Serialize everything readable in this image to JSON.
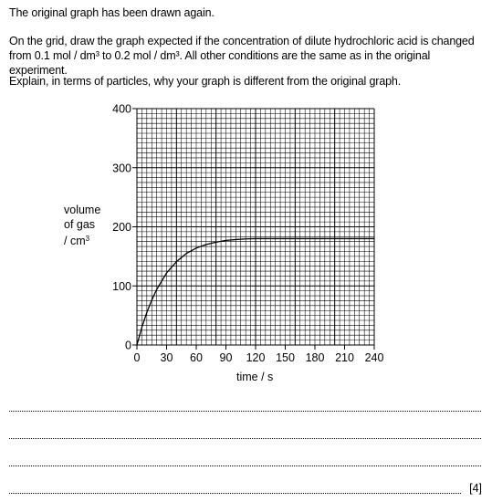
{
  "question": {
    "line1": "The original graph has been drawn again.",
    "line2": "On the grid, draw the graph expected if the concentration of dilute hydrochloric acid is changed from 0.1 mol / dm³ to 0.2 mol / dm³. All other conditions are the same as in the original experiment.",
    "line3": "Explain, in terms of particles, why your graph is different from the original graph.",
    "marks": "[4]"
  },
  "chart_data": {
    "type": "line",
    "xlabel": "time / s",
    "ylabel_lines": [
      "volume",
      "of gas",
      "/ cm"
    ],
    "ylabel_sup": "3",
    "xlim": [
      0,
      240
    ],
    "ylim": [
      0,
      400
    ],
    "x_ticks": [
      "0",
      "30",
      "60",
      "90",
      "120",
      "150",
      "180",
      "210",
      "240"
    ],
    "y_ticks": [
      "0",
      "100",
      "200",
      "300",
      "400"
    ],
    "grid": true,
    "series": [
      {
        "x": [
          0,
          5,
          10,
          15,
          20,
          30,
          40,
          50,
          60,
          70,
          80,
          90,
          100,
          110,
          120,
          130,
          150,
          180,
          210,
          240
        ],
        "y": [
          0,
          30,
          55,
          76,
          94,
          122,
          141,
          155,
          164,
          170,
          174,
          177,
          178.5,
          179.5,
          180,
          180,
          180,
          180,
          180,
          180
        ]
      }
    ]
  }
}
